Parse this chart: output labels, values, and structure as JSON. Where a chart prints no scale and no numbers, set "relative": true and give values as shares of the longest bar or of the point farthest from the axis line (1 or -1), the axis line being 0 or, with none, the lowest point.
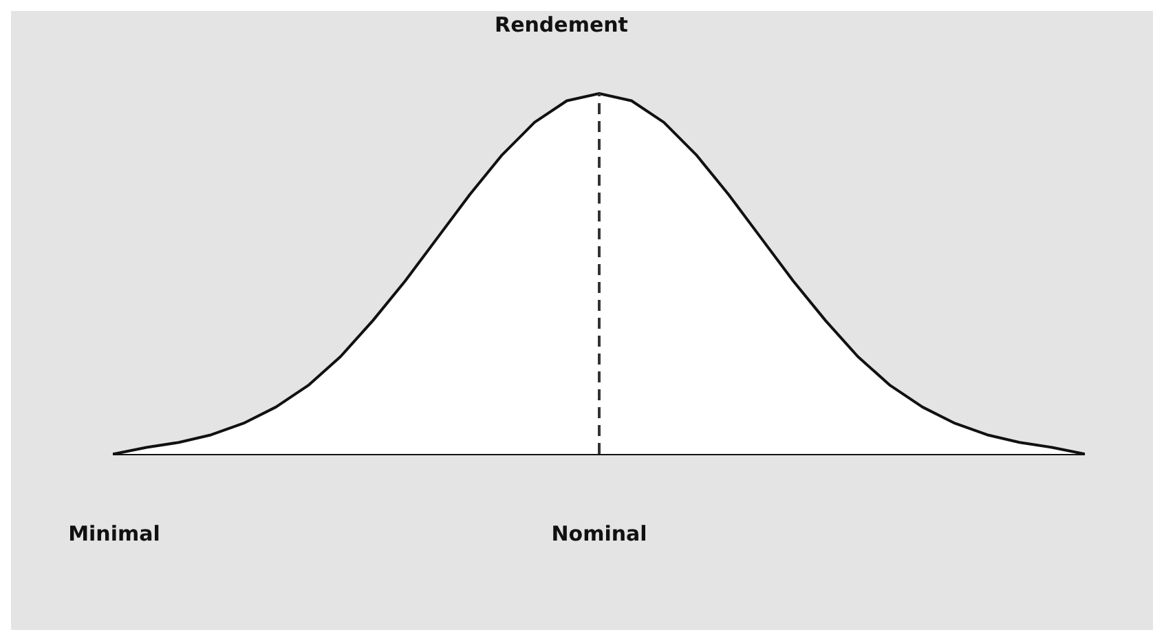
{
  "chart_data": {
    "type": "area",
    "title": "Rendement",
    "relative": true,
    "categories": [
      "Minimal",
      null,
      null,
      null,
      null,
      null,
      null,
      null,
      null,
      null,
      null,
      null,
      null,
      null,
      null,
      "Nominal",
      null,
      null,
      null,
      null,
      null,
      null,
      null,
      null,
      null,
      null,
      null,
      null,
      null,
      null,
      null
    ],
    "series": [
      {
        "color": "#111111",
        "values": [
          0,
          0.018,
          0.032,
          0.053,
          0.085,
          0.13,
          0.19,
          0.27,
          0.37,
          0.48,
          0.6,
          0.72,
          0.83,
          0.92,
          0.98,
          1,
          0.98,
          0.92,
          0.83,
          0.72,
          0.6,
          0.48,
          0.37,
          0.27,
          0.19,
          0.13,
          0.085,
          0.053,
          0.032,
          0.018,
          0
        ]
      }
    ],
    "ref_lines": [
      {
        "axis": "x",
        "value": "Nominal",
        "line_style": "dashed",
        "color": "#333333"
      }
    ],
    "grid": false,
    "legend": false
  }
}
